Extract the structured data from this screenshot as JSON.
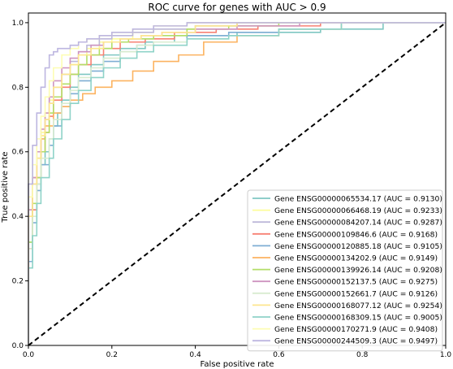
{
  "chart_data": {
    "type": "line",
    "title": "ROC curve for genes with AUC > 0.9",
    "xlabel": "False positive rate",
    "ylabel": "True positive rate",
    "xlim": [
      0,
      1
    ],
    "ylim": [
      0,
      1.03
    ],
    "xticks": [
      "0.0",
      "0.2",
      "0.4",
      "0.6",
      "0.8",
      "1.0"
    ],
    "yticks": [
      "0.0",
      "0.2",
      "0.4",
      "0.6",
      "0.8",
      "1.0"
    ],
    "grid": false,
    "legend_position": "lower-right",
    "diagonal": {
      "x": [
        0,
        1
      ],
      "y": [
        0,
        1
      ],
      "color": "#000000",
      "style": "dashed"
    },
    "series": [
      {
        "name": "Gene ENSG00000065534.17 (AUC = 0.9130)",
        "color": "#7fc7c2",
        "x": [
          0,
          0,
          0.01,
          0.02,
          0.03,
          0.04,
          0.05,
          0.06,
          0.07,
          0.08,
          0.1,
          0.12,
          0.15,
          0.18,
          0.22,
          0.28,
          0.35,
          0.5,
          0.7,
          0.85,
          1
        ],
        "y": [
          0,
          0.22,
          0.32,
          0.42,
          0.5,
          0.56,
          0.6,
          0.64,
          0.68,
          0.72,
          0.76,
          0.8,
          0.84,
          0.87,
          0.9,
          0.92,
          0.94,
          0.96,
          0.97,
          0.98,
          1
        ]
      },
      {
        "name": "Gene ENSG00000066468.19 (AUC = 0.9233)",
        "color": "#fdfd9a",
        "x": [
          0,
          0,
          0.01,
          0.02,
          0.03,
          0.04,
          0.05,
          0.06,
          0.08,
          0.1,
          0.12,
          0.14,
          0.17,
          0.2,
          0.25,
          0.3,
          0.4,
          0.5,
          0.7,
          1
        ],
        "y": [
          0,
          0.3,
          0.42,
          0.52,
          0.6,
          0.66,
          0.72,
          0.76,
          0.8,
          0.84,
          0.87,
          0.9,
          0.92,
          0.94,
          0.95,
          0.97,
          0.98,
          0.99,
          1,
          1
        ]
      },
      {
        "name": "Gene ENSG00000084207.14 (AUC = 0.9287)",
        "color": "#bdb8da",
        "x": [
          0,
          0,
          0.01,
          0.02,
          0.03,
          0.04,
          0.05,
          0.06,
          0.08,
          0.1,
          0.12,
          0.14,
          0.17,
          0.2,
          0.25,
          0.3,
          0.4,
          0.5,
          0.7,
          1
        ],
        "y": [
          0,
          0.28,
          0.4,
          0.5,
          0.58,
          0.64,
          0.7,
          0.75,
          0.8,
          0.84,
          0.88,
          0.91,
          0.93,
          0.95,
          0.96,
          0.97,
          0.98,
          0.99,
          1,
          1
        ]
      },
      {
        "name": "Gene ENSG00000109846.6 (AUC = 0.9168)",
        "color": "#f78173",
        "x": [
          0,
          0,
          0.01,
          0.02,
          0.03,
          0.04,
          0.05,
          0.06,
          0.08,
          0.1,
          0.12,
          0.15,
          0.18,
          0.22,
          0.28,
          0.35,
          0.45,
          0.55,
          0.7,
          1
        ],
        "y": [
          0,
          0.15,
          0.3,
          0.42,
          0.52,
          0.6,
          0.66,
          0.71,
          0.76,
          0.8,
          0.84,
          0.87,
          0.9,
          0.92,
          0.94,
          0.95,
          0.97,
          0.98,
          0.99,
          1
        ]
      },
      {
        "name": "Gene ENSG00000120885.18 (AUC = 0.9105)",
        "color": "#7faed4",
        "x": [
          0,
          0,
          0.01,
          0.02,
          0.03,
          0.05,
          0.06,
          0.08,
          0.1,
          0.12,
          0.15,
          0.18,
          0.22,
          0.26,
          0.3,
          0.38,
          0.48,
          0.6,
          0.75,
          1
        ],
        "y": [
          0,
          0.12,
          0.26,
          0.38,
          0.48,
          0.56,
          0.62,
          0.68,
          0.74,
          0.78,
          0.82,
          0.85,
          0.88,
          0.91,
          0.93,
          0.94,
          0.96,
          0.97,
          0.98,
          1
        ]
      },
      {
        "name": "Gene ENSG00000134202.9 (AUC = 0.9149)",
        "color": "#fcb360",
        "x": [
          0,
          0,
          0.01,
          0.02,
          0.03,
          0.04,
          0.06,
          0.08,
          0.1,
          0.13,
          0.16,
          0.2,
          0.25,
          0.3,
          0.36,
          0.42,
          0.5,
          0.6,
          0.75,
          1
        ],
        "y": [
          0,
          0.3,
          0.42,
          0.52,
          0.6,
          0.64,
          0.68,
          0.72,
          0.74,
          0.76,
          0.78,
          0.8,
          0.82,
          0.85,
          0.88,
          0.9,
          0.94,
          0.96,
          0.98,
          1
        ]
      },
      {
        "name": "Gene ENSG00000139926.14 (AUC = 0.9208)",
        "color": "#b3de68",
        "x": [
          0,
          0,
          0.01,
          0.02,
          0.03,
          0.04,
          0.05,
          0.06,
          0.08,
          0.1,
          0.12,
          0.14,
          0.17,
          0.2,
          0.24,
          0.3,
          0.38,
          0.48,
          0.6,
          1
        ],
        "y": [
          0,
          0.2,
          0.32,
          0.44,
          0.52,
          0.6,
          0.66,
          0.72,
          0.77,
          0.81,
          0.84,
          0.87,
          0.9,
          0.92,
          0.94,
          0.95,
          0.96,
          0.98,
          0.99,
          1
        ]
      },
      {
        "name": "Gene ENSG00000152137.5 (AUC = 0.9275)",
        "color": "#ce94c0",
        "x": [
          0,
          0,
          0.01,
          0.02,
          0.03,
          0.04,
          0.05,
          0.06,
          0.08,
          0.1,
          0.12,
          0.15,
          0.18,
          0.22,
          0.27,
          0.32,
          0.4,
          0.5,
          0.65,
          1
        ],
        "y": [
          0,
          0.3,
          0.42,
          0.52,
          0.6,
          0.67,
          0.72,
          0.77,
          0.82,
          0.86,
          0.89,
          0.91,
          0.93,
          0.94,
          0.95,
          0.96,
          0.97,
          0.98,
          0.99,
          1
        ]
      },
      {
        "name": "Gene ENSG00000152661.7 (AUC = 0.9126)",
        "color": "#d9ecd0",
        "x": [
          0,
          0,
          0.01,
          0.02,
          0.03,
          0.05,
          0.06,
          0.08,
          0.1,
          0.12,
          0.15,
          0.18,
          0.22,
          0.26,
          0.3,
          0.38,
          0.48,
          0.6,
          0.75,
          1
        ],
        "y": [
          0,
          0.18,
          0.3,
          0.4,
          0.5,
          0.58,
          0.64,
          0.7,
          0.75,
          0.79,
          0.83,
          0.86,
          0.89,
          0.91,
          0.93,
          0.94,
          0.95,
          0.96,
          0.98,
          1
        ]
      },
      {
        "name": "Gene ENSG00000168077.12 (AUC = 0.9254)",
        "color": "#fde68f",
        "x": [
          0,
          0,
          0.01,
          0.02,
          0.03,
          0.04,
          0.05,
          0.06,
          0.08,
          0.1,
          0.12,
          0.15,
          0.18,
          0.22,
          0.27,
          0.32,
          0.4,
          0.5,
          0.65,
          1
        ],
        "y": [
          0,
          0.26,
          0.4,
          0.5,
          0.58,
          0.65,
          0.7,
          0.75,
          0.8,
          0.84,
          0.87,
          0.9,
          0.92,
          0.94,
          0.95,
          0.96,
          0.97,
          0.99,
          1,
          1
        ]
      },
      {
        "name": "Gene ENSG00000168309.15 (AUC = 0.9005)",
        "color": "#8fd3c8",
        "x": [
          0,
          0,
          0.01,
          0.02,
          0.03,
          0.05,
          0.06,
          0.08,
          0.1,
          0.12,
          0.15,
          0.18,
          0.22,
          0.26,
          0.3,
          0.38,
          0.48,
          0.6,
          0.75,
          1
        ],
        "y": [
          0,
          0.12,
          0.24,
          0.34,
          0.44,
          0.52,
          0.58,
          0.64,
          0.7,
          0.75,
          0.79,
          0.83,
          0.86,
          0.89,
          0.91,
          0.93,
          0.95,
          0.96,
          0.98,
          1
        ]
      },
      {
        "name": "Gene ENSG00000170271.9 (AUC = 0.9408)",
        "color": "#fdfdb3",
        "x": [
          0,
          0,
          0.01,
          0.02,
          0.03,
          0.04,
          0.05,
          0.06,
          0.08,
          0.1,
          0.12,
          0.14,
          0.17,
          0.2,
          0.25,
          0.3,
          0.38,
          0.48,
          0.6,
          1
        ],
        "y": [
          0,
          0.32,
          0.46,
          0.56,
          0.64,
          0.71,
          0.77,
          0.82,
          0.86,
          0.9,
          0.92,
          0.94,
          0.95,
          0.96,
          0.97,
          0.98,
          0.99,
          1,
          1,
          1
        ]
      },
      {
        "name": "Gene ENSG00000244509.3 (AUC = 0.9497)",
        "color": "#bdb6e0",
        "x": [
          0,
          0,
          0.01,
          0.02,
          0.03,
          0.04,
          0.05,
          0.06,
          0.07,
          0.1,
          0.12,
          0.14,
          0.17,
          0.2,
          0.25,
          0.3,
          0.38,
          0.48,
          0.6,
          1
        ],
        "y": [
          0,
          0.34,
          0.5,
          0.62,
          0.72,
          0.8,
          0.86,
          0.9,
          0.91,
          0.92,
          0.93,
          0.94,
          0.95,
          0.96,
          0.97,
          0.98,
          0.99,
          1,
          1,
          1
        ]
      }
    ]
  }
}
